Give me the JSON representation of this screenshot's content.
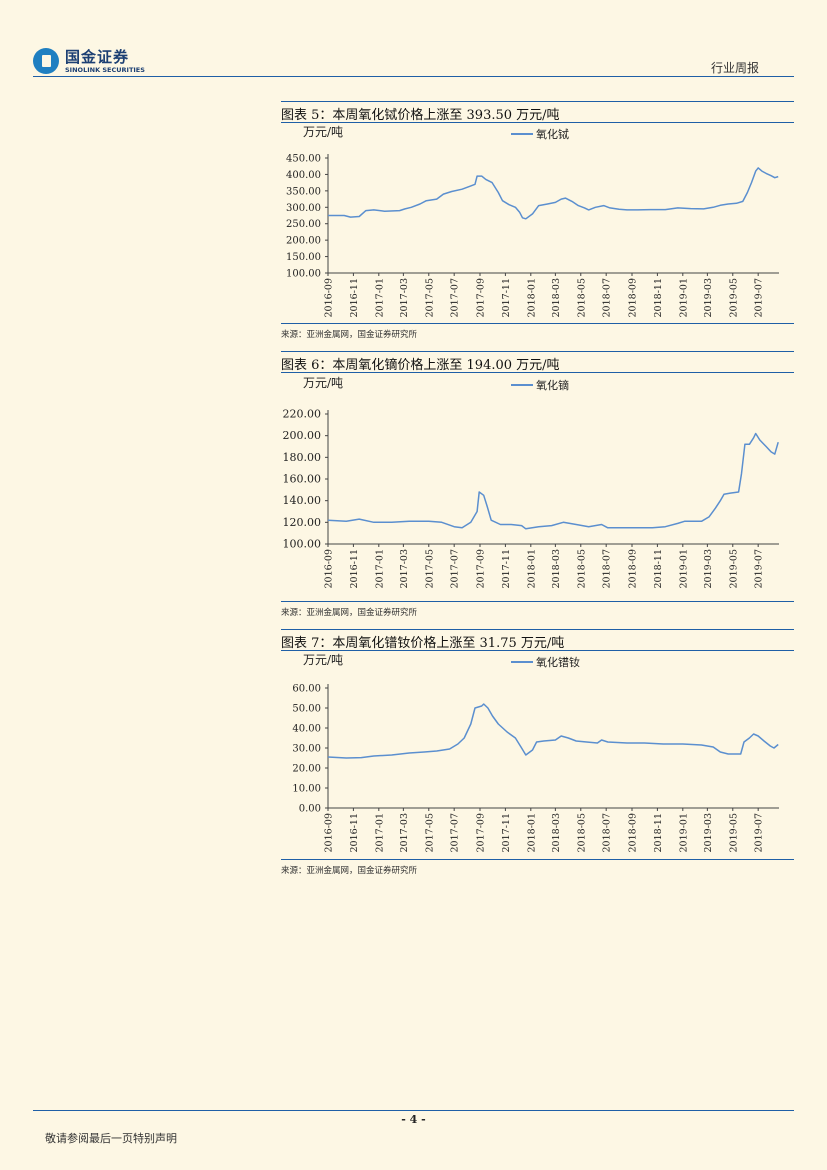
{
  "header": {
    "logo_cn": "国金证券",
    "logo_en": "SINOLINK SECURITIES",
    "report_type": "行业周报"
  },
  "figures": [
    {
      "title": "图表 5：本周氧化铽价格上涨至 393.50 万元/吨",
      "source": "来源：亚洲金属网，国金证券研究所",
      "chart_data": {
        "type": "line",
        "unit_label": "万元/吨",
        "series": [
          {
            "name": "氧化铽",
            "color": "#5b8fcf",
            "values": [
              [
                "2016-09-01",
                275
              ],
              [
                "2016-10-10",
                275
              ],
              [
                "2016-10-25",
                270
              ],
              [
                "2016-11-15",
                272
              ],
              [
                "2016-12-01",
                290
              ],
              [
                "2016-12-20",
                292
              ],
              [
                "2017-01-15",
                288
              ],
              [
                "2017-02-20",
                290
              ],
              [
                "2017-03-05",
                295
              ],
              [
                "2017-03-20",
                300
              ],
              [
                "2017-04-10",
                310
              ],
              [
                "2017-04-25",
                320
              ],
              [
                "2017-05-20",
                325
              ],
              [
                "2017-06-05",
                340
              ],
              [
                "2017-06-25",
                348
              ],
              [
                "2017-07-20",
                355
              ],
              [
                "2017-08-10",
                365
              ],
              [
                "2017-08-20",
                370
              ],
              [
                "2017-08-25",
                395
              ],
              [
                "2017-09-05",
                395
              ],
              [
                "2017-09-15",
                385
              ],
              [
                "2017-09-30",
                375
              ],
              [
                "2017-10-15",
                345
              ],
              [
                "2017-10-25",
                320
              ],
              [
                "2017-11-10",
                308
              ],
              [
                "2017-11-25",
                300
              ],
              [
                "2017-12-05",
                285
              ],
              [
                "2017-12-12",
                268
              ],
              [
                "2017-12-20",
                265
              ],
              [
                "2018-01-05",
                280
              ],
              [
                "2018-01-20",
                305
              ],
              [
                "2018-02-10",
                310
              ],
              [
                "2018-03-01",
                315
              ],
              [
                "2018-03-15",
                325
              ],
              [
                "2018-03-25",
                328
              ],
              [
                "2018-04-10",
                318
              ],
              [
                "2018-04-25",
                305
              ],
              [
                "2018-05-10",
                298
              ],
              [
                "2018-05-20",
                292
              ],
              [
                "2018-06-05",
                300
              ],
              [
                "2018-06-25",
                305
              ],
              [
                "2018-07-10",
                298
              ],
              [
                "2018-08-01",
                294
              ],
              [
                "2018-08-20",
                292
              ],
              [
                "2018-09-15",
                292
              ],
              [
                "2018-10-15",
                293
              ],
              [
                "2018-11-20",
                293
              ],
              [
                "2018-12-20",
                298
              ],
              [
                "2019-01-20",
                296
              ],
              [
                "2019-02-20",
                295
              ],
              [
                "2019-03-15",
                300
              ],
              [
                "2019-04-01",
                306
              ],
              [
                "2019-04-20",
                310
              ],
              [
                "2019-05-10",
                312
              ],
              [
                "2019-05-25",
                318
              ],
              [
                "2019-06-05",
                345
              ],
              [
                "2019-06-15",
                375
              ],
              [
                "2019-06-25",
                410
              ],
              [
                "2019-07-01",
                420
              ],
              [
                "2019-07-10",
                410
              ],
              [
                "2019-07-20",
                403
              ],
              [
                "2019-08-01",
                396
              ],
              [
                "2019-08-10",
                390
              ],
              [
                "2019-08-18",
                393.5
              ]
            ]
          }
        ],
        "ylim": [
          100,
          450
        ],
        "yticks": [
          "100.00",
          "150.00",
          "200.00",
          "250.00",
          "300.00",
          "350.00",
          "400.00",
          "450.00"
        ],
        "xticks": [
          "2016-09",
          "2016-11",
          "2017-01",
          "2017-03",
          "2017-05",
          "2017-07",
          "2017-09",
          "2017-11",
          "2018-01",
          "2018-03",
          "2018-05",
          "2018-07",
          "2018-09",
          "2018-11",
          "2019-01",
          "2019-03",
          "2019-05",
          "2019-07"
        ]
      }
    },
    {
      "title": "图表 6：本周氧化镝价格上涨至 194.00 万元/吨",
      "source": "来源：亚洲金属网，国金证券研究所",
      "chart_data": {
        "type": "line",
        "unit_label": "万元/吨",
        "series": [
          {
            "name": "氧化镝",
            "color": "#5b8fcf",
            "values": [
              [
                "2016-09-01",
                122
              ],
              [
                "2016-10-15",
                121
              ],
              [
                "2016-11-15",
                123
              ],
              [
                "2016-12-20",
                120
              ],
              [
                "2017-02-01",
                120
              ],
              [
                "2017-03-15",
                121
              ],
              [
                "2017-05-01",
                121
              ],
              [
                "2017-06-01",
                120
              ],
              [
                "2017-07-01",
                116
              ],
              [
                "2017-07-20",
                115
              ],
              [
                "2017-08-10",
                120
              ],
              [
                "2017-08-25",
                130
              ],
              [
                "2017-08-30",
                148
              ],
              [
                "2017-09-10",
                145
              ],
              [
                "2017-09-18",
                135
              ],
              [
                "2017-09-28",
                122
              ],
              [
                "2017-10-20",
                118
              ],
              [
                "2017-11-15",
                118
              ],
              [
                "2017-12-10",
                117
              ],
              [
                "2017-12-20",
                114
              ],
              [
                "2018-01-20",
                116
              ],
              [
                "2018-02-20",
                117
              ],
              [
                "2018-03-20",
                120
              ],
              [
                "2018-04-20",
                118
              ],
              [
                "2018-05-20",
                116
              ],
              [
                "2018-06-20",
                118
              ],
              [
                "2018-07-05",
                115
              ],
              [
                "2018-08-20",
                115
              ],
              [
                "2018-10-20",
                115
              ],
              [
                "2018-11-20",
                116
              ],
              [
                "2018-12-20",
                119
              ],
              [
                "2019-01-05",
                121
              ],
              [
                "2019-02-15",
                121
              ],
              [
                "2019-03-05",
                125
              ],
              [
                "2019-03-20",
                133
              ],
              [
                "2019-04-01",
                140
              ],
              [
                "2019-04-10",
                146
              ],
              [
                "2019-04-25",
                147
              ],
              [
                "2019-05-15",
                148
              ],
              [
                "2019-05-22",
                165
              ],
              [
                "2019-05-30",
                192
              ],
              [
                "2019-06-10",
                192
              ],
              [
                "2019-06-20",
                198
              ],
              [
                "2019-06-25",
                202
              ],
              [
                "2019-07-05",
                196
              ],
              [
                "2019-07-20",
                190
              ],
              [
                "2019-08-01",
                185
              ],
              [
                "2019-08-10",
                183
              ],
              [
                "2019-08-18",
                194
              ]
            ]
          }
        ],
        "ylim": [
          100,
          220
        ],
        "yticks": [
          "100.00",
          "120.00",
          "140.00",
          "160.00",
          "180.00",
          "200.00",
          "220.00"
        ],
        "xticks": [
          "2016-09",
          "2016-11",
          "2017-01",
          "2017-03",
          "2017-05",
          "2017-07",
          "2017-09",
          "2017-11",
          "2018-01",
          "2018-03",
          "2018-05",
          "2018-07",
          "2018-09",
          "2018-11",
          "2019-01",
          "2019-03",
          "2019-05",
          "2019-07"
        ]
      }
    },
    {
      "title": "图表 7：本周氧化镨钕价格上涨至 31.75 万元/吨",
      "source": "来源：亚洲金属网，国金证券研究所",
      "chart_data": {
        "type": "line",
        "unit_label": "万元/吨",
        "series": [
          {
            "name": "氧化镨钕",
            "color": "#5b8fcf",
            "values": [
              [
                "2016-09-01",
                25.5
              ],
              [
                "2016-10-15",
                25
              ],
              [
                "2016-11-20",
                25.2
              ],
              [
                "2016-12-20",
                26
              ],
              [
                "2017-02-01",
                26.5
              ],
              [
                "2017-03-15",
                27.5
              ],
              [
                "2017-04-20",
                28
              ],
              [
                "2017-05-20",
                28.5
              ],
              [
                "2017-06-20",
                29.5
              ],
              [
                "2017-07-10",
                32
              ],
              [
                "2017-07-25",
                35
              ],
              [
                "2017-08-10",
                42
              ],
              [
                "2017-08-20",
                50
              ],
              [
                "2017-09-05",
                51
              ],
              [
                "2017-09-10",
                52
              ],
              [
                "2017-09-20",
                50
              ],
              [
                "2017-10-01",
                46
              ],
              [
                "2017-10-15",
                42
              ],
              [
                "2017-11-05",
                38
              ],
              [
                "2017-11-25",
                35
              ],
              [
                "2017-12-10",
                30
              ],
              [
                "2017-12-20",
                26.5
              ],
              [
                "2018-01-05",
                29
              ],
              [
                "2018-01-15",
                33
              ],
              [
                "2018-02-01",
                33.5
              ],
              [
                "2018-03-01",
                34
              ],
              [
                "2018-03-15",
                36
              ],
              [
                "2018-04-01",
                35
              ],
              [
                "2018-04-20",
                33.5
              ],
              [
                "2018-05-15",
                33
              ],
              [
                "2018-06-10",
                32.5
              ],
              [
                "2018-06-20",
                34
              ],
              [
                "2018-07-05",
                33
              ],
              [
                "2018-08-20",
                32.5
              ],
              [
                "2018-10-01",
                32.5
              ],
              [
                "2018-11-15",
                32
              ],
              [
                "2019-01-01",
                32
              ],
              [
                "2019-02-15",
                31.5
              ],
              [
                "2019-03-15",
                30.5
              ],
              [
                "2019-04-01",
                28
              ],
              [
                "2019-04-20",
                27
              ],
              [
                "2019-05-20",
                27
              ],
              [
                "2019-05-28",
                33
              ],
              [
                "2019-06-10",
                35
              ],
              [
                "2019-06-20",
                37
              ],
              [
                "2019-07-01",
                36
              ],
              [
                "2019-07-15",
                33.5
              ],
              [
                "2019-07-30",
                31
              ],
              [
                "2019-08-08",
                30
              ],
              [
                "2019-08-18",
                31.75
              ]
            ]
          }
        ],
        "ylim": [
          0,
          60
        ],
        "yticks": [
          "0.00",
          "10.00",
          "20.00",
          "30.00",
          "40.00",
          "50.00",
          "60.00"
        ],
        "xticks": [
          "2016-09",
          "2016-11",
          "2017-01",
          "2017-03",
          "2017-05",
          "2017-07",
          "2017-09",
          "2017-11",
          "2018-01",
          "2018-03",
          "2018-05",
          "2018-07",
          "2018-09",
          "2018-11",
          "2019-01",
          "2019-03",
          "2019-05",
          "2019-07"
        ]
      }
    }
  ],
  "footer": {
    "page_number": "- 4 -",
    "note": "敬请参阅最后一页特别声明"
  }
}
